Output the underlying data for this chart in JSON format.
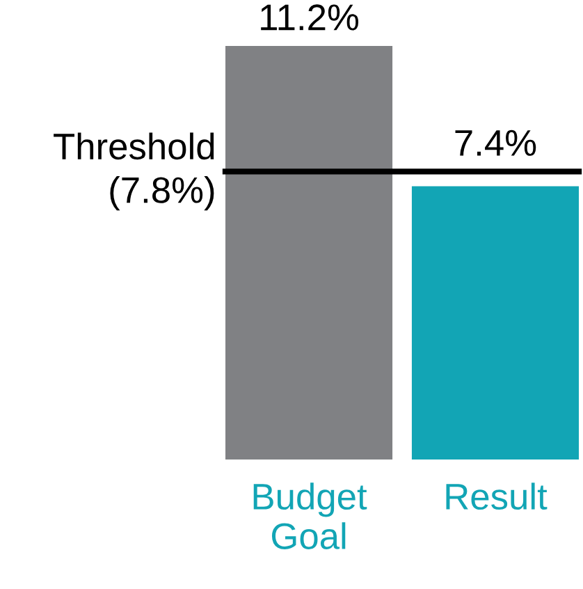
{
  "chart_data": {
    "type": "bar",
    "categories": [
      "Budget\nGoal",
      "Result"
    ],
    "values": [
      11.2,
      7.4
    ],
    "colors": [
      "#808184",
      "#12a5b5"
    ],
    "value_labels": [
      "11.2%",
      "7.4%"
    ],
    "ref_lines": [
      {
        "axis": "y",
        "value": 7.8,
        "label": "Threshold\n(7.8%)",
        "color": "#000000"
      }
    ],
    "grid": false,
    "legend": false
  }
}
